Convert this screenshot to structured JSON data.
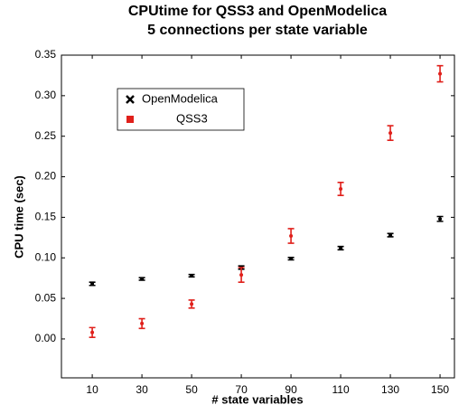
{
  "chart_data": {
    "type": "scatter",
    "title": [
      "CPUtime for QSS3 and OpenModelica",
      "5 connections per state variable"
    ],
    "x_label": "# state variables",
    "y_label": "CPU time (sec)",
    "x": [
      10,
      30,
      50,
      70,
      90,
      110,
      130,
      150
    ],
    "series": [
      {
        "name": "OpenModelica",
        "color": "#000000",
        "marker": "x",
        "values": [
          0.068,
          0.074,
          0.078,
          0.088,
          0.099,
          0.112,
          0.128,
          0.148
        ],
        "errors": [
          0.002,
          0.0015,
          0.0015,
          0.002,
          0.0015,
          0.002,
          0.002,
          0.003
        ]
      },
      {
        "name": "QSS3",
        "color": "#e0201b",
        "marker": "square",
        "values": [
          0.008,
          0.019,
          0.043,
          0.079,
          0.127,
          0.185,
          0.254,
          0.327
        ],
        "errors": [
          0.006,
          0.006,
          0.005,
          0.009,
          0.009,
          0.008,
          0.009,
          0.01
        ]
      }
    ],
    "xlim": [
      -2.4,
      155.8
    ],
    "xticks": [
      10,
      30,
      50,
      70,
      90,
      110,
      130,
      150
    ],
    "ylim": [
      -0.048,
      0.35
    ],
    "yticks": [
      {
        "value": 0,
        "label": "0.00"
      },
      0.05,
      {
        "value": 0.1,
        "label": "0.10"
      },
      0.15,
      {
        "value": 0.2,
        "label": "0.20"
      },
      0.25,
      {
        "value": 0.3,
        "label": "0.30"
      },
      0.35
    ],
    "legend": "upper left"
  }
}
